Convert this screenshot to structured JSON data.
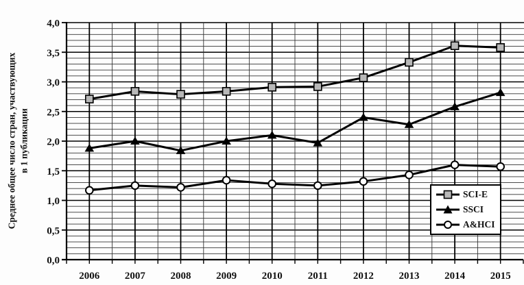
{
  "figure": {
    "background": "#fdfdfd",
    "y_axis_title_line1": "Среднее общее число стран, участвующих",
    "y_axis_title_line2": "в 1 публикации"
  },
  "chart_data": {
    "type": "line",
    "title": "",
    "xlabel": "",
    "ylabel": "Среднее общее число стран, участвующих в 1 публикации",
    "ylim": [
      0.0,
      4.0
    ],
    "y_major_step": 0.5,
    "y_minor_step": 0.1,
    "y_tick_labels": [
      "0,0",
      "0,5",
      "1,0",
      "1,5",
      "2,0",
      "2,5",
      "3,0",
      "3,5",
      "4,0"
    ],
    "grid": "major-and-minor-both-axes",
    "legend_position": "lower-right-inside",
    "colors": {
      "line": "#000000",
      "grid_minor": "#333333",
      "grid_major": "#000000",
      "square_fill": "#b8b8b8",
      "triangle_fill": "#000000",
      "circle_fill": "#ffffff"
    },
    "categories": [
      "2006",
      "2007",
      "2008",
      "2009",
      "2010",
      "2011",
      "2012",
      "2013",
      "2014",
      "2015"
    ],
    "series": [
      {
        "name": "SCI-E",
        "marker": "square",
        "marker_fill": "#b8b8b8",
        "line_color": "#000000",
        "values": [
          2.71,
          2.84,
          2.79,
          2.84,
          2.91,
          2.92,
          3.07,
          3.33,
          3.61,
          3.58
        ]
      },
      {
        "name": "SSCI",
        "marker": "triangle",
        "marker_fill": "#000000",
        "line_color": "#000000",
        "values": [
          1.88,
          2.0,
          1.84,
          2.0,
          2.1,
          1.97,
          2.4,
          2.28,
          2.58,
          2.82
        ]
      },
      {
        "name": "A&HCI",
        "marker": "circle",
        "marker_fill": "#ffffff",
        "line_color": "#000000",
        "values": [
          1.17,
          1.25,
          1.22,
          1.34,
          1.28,
          1.25,
          1.32,
          1.43,
          1.6,
          1.57
        ]
      }
    ]
  }
}
